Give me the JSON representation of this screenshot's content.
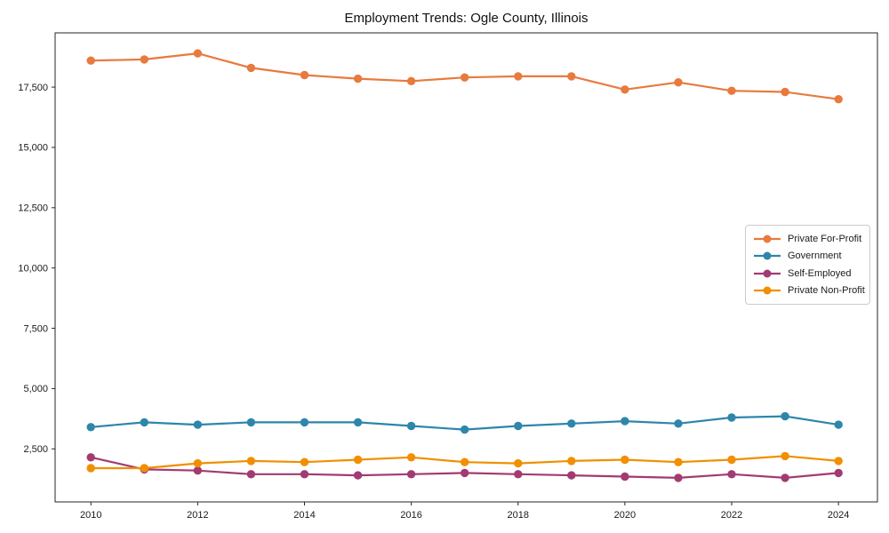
{
  "chart_data": {
    "type": "line",
    "title": "Employment Trends: Ogle County, Illinois",
    "xlabel": "",
    "ylabel": "",
    "grid": false,
    "legend_position": "center right",
    "x": [
      2010,
      2011,
      2012,
      2013,
      2014,
      2015,
      2016,
      2017,
      2018,
      2019,
      2020,
      2021,
      2022,
      2023,
      2024
    ],
    "series": [
      {
        "name": "Private For-Profit",
        "color": "#E87A3D",
        "values": [
          18600,
          18650,
          18900,
          18300,
          18000,
          17850,
          17750,
          17900,
          17950,
          17950,
          17400,
          17700,
          17350,
          17300,
          17000
        ]
      },
      {
        "name": "Government",
        "color": "#2E86AB",
        "values": [
          3400,
          3600,
          3500,
          3600,
          3600,
          3600,
          3450,
          3300,
          3450,
          3550,
          3650,
          3550,
          3800,
          3850,
          3500
        ]
      },
      {
        "name": "Self-Employed",
        "color": "#A23B72",
        "values": [
          2150,
          1650,
          1600,
          1450,
          1450,
          1400,
          1450,
          1500,
          1450,
          1400,
          1350,
          1300,
          1450,
          1300,
          1500
        ]
      },
      {
        "name": "Private Non-Profit",
        "color": "#F18F01",
        "values": [
          1700,
          1700,
          1900,
          2000,
          1950,
          2050,
          2150,
          1950,
          1900,
          2000,
          2050,
          1950,
          2050,
          2200,
          2000
        ]
      }
    ],
    "x_ticks": [
      2010,
      2012,
      2014,
      2016,
      2018,
      2020,
      2022,
      2024
    ],
    "x_tick_labels": [
      "2010",
      "2012",
      "2014",
      "2016",
      "2018",
      "2020",
      "2022",
      "2024"
    ],
    "y_ticks": [
      2500,
      5000,
      7500,
      10000,
      12500,
      15000,
      17500
    ],
    "y_tick_labels": [
      "2,500",
      "5,000",
      "7,500",
      "10,000",
      "12,500",
      "15,000",
      "17,500"
    ],
    "xlim": [
      2009.33,
      2024.73
    ],
    "ylim": [
      300,
      19750
    ],
    "axis_color": "#262626"
  }
}
